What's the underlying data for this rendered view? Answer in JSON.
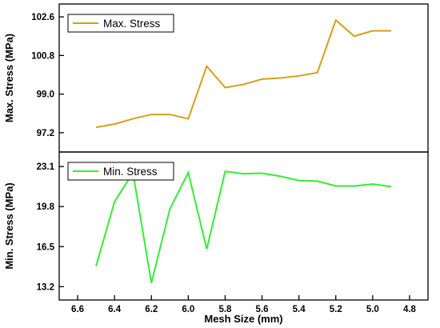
{
  "chart_data": [
    {
      "type": "line",
      "ylabel": "Max. Stress (MPa)",
      "yticks": [
        97.2,
        99.0,
        100.8,
        102.6
      ],
      "ylim": [
        96.3,
        103.2
      ],
      "grid": false,
      "legend_position": "top-left",
      "series": [
        {
          "name": "Max. Stress",
          "color": "#D4A017",
          "x": [
            6.5,
            6.4,
            6.3,
            6.2,
            6.1,
            6.0,
            5.9,
            5.8,
            5.7,
            5.6,
            5.5,
            5.4,
            5.3,
            5.2,
            5.1,
            5.0,
            4.9
          ],
          "values": [
            97.45,
            97.6,
            97.85,
            98.05,
            98.05,
            97.85,
            100.3,
            99.3,
            99.45,
            99.7,
            99.75,
            99.85,
            100.0,
            102.45,
            101.7,
            101.95,
            101.95
          ]
        }
      ]
    },
    {
      "type": "line",
      "xlabel": "Mesh Size (mm)",
      "ylabel": "Min. Stress (MPa)",
      "xticks": [
        6.6,
        6.4,
        6.2,
        6.0,
        5.8,
        5.6,
        5.4,
        5.2,
        5.0,
        4.8
      ],
      "xlim": [
        6.7,
        4.7
      ],
      "xaxis_reversed": true,
      "yticks": [
        13.2,
        16.5,
        19.8,
        23.1
      ],
      "ylim": [
        12.1,
        24.3
      ],
      "grid": false,
      "legend_position": "top-left",
      "series": [
        {
          "name": "Min. Stress",
          "color": "#33EE33",
          "x": [
            6.5,
            6.4,
            6.3,
            6.2,
            6.1,
            6.0,
            5.9,
            5.8,
            5.7,
            5.6,
            5.5,
            5.4,
            5.3,
            5.2,
            5.1,
            5.0,
            4.9
          ],
          "values": [
            14.9,
            20.2,
            22.6,
            13.5,
            19.6,
            22.6,
            16.3,
            22.7,
            22.5,
            22.55,
            22.3,
            21.95,
            21.9,
            21.5,
            21.5,
            21.65,
            21.45
          ]
        }
      ]
    }
  ]
}
